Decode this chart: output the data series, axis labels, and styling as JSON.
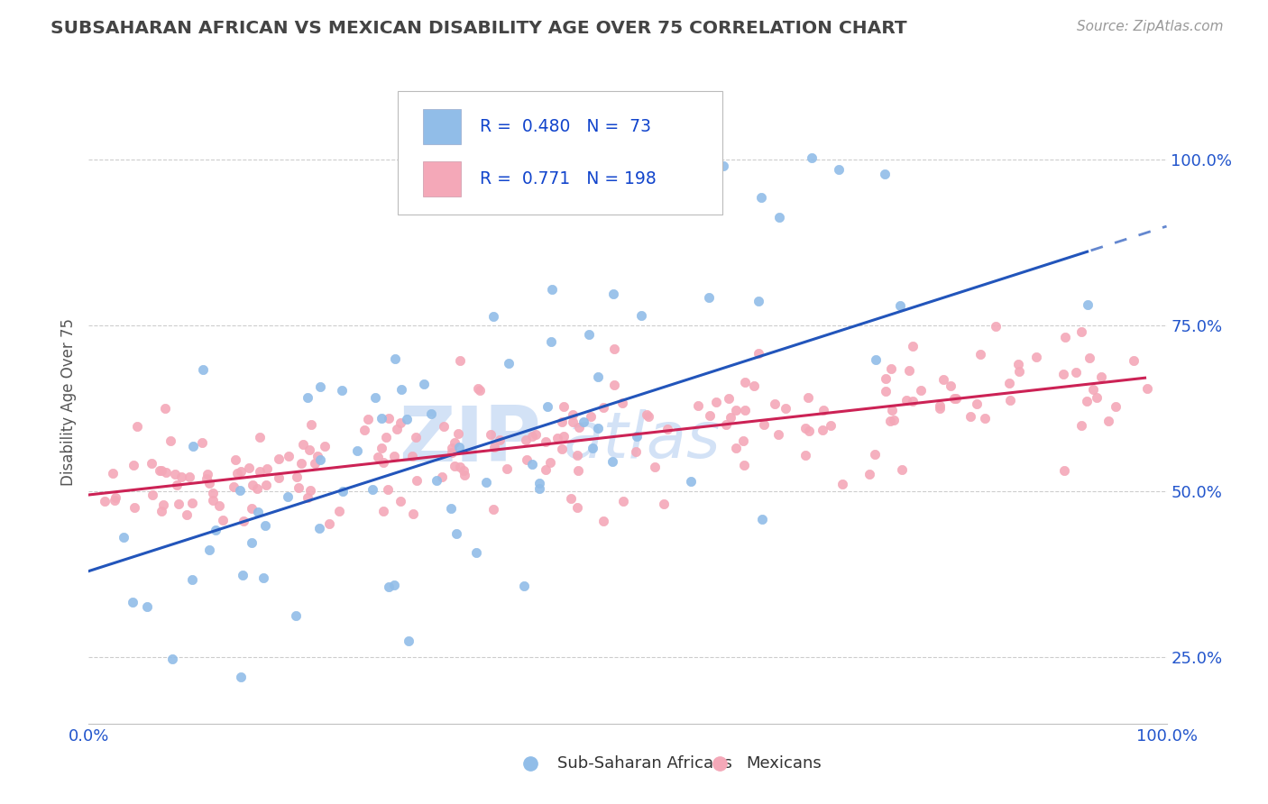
{
  "title": "SUBSAHARAN AFRICAN VS MEXICAN DISABILITY AGE OVER 75 CORRELATION CHART",
  "source": "Source: ZipAtlas.com",
  "ylabel": "Disability Age Over 75",
  "legend_labels": [
    "Sub-Saharan Africans",
    "Mexicans"
  ],
  "watermark_line1": "ZIP",
  "watermark_line2": "atlas",
  "blue_R": "0.480",
  "blue_N": "73",
  "pink_R": "0.771",
  "pink_N": "198",
  "blue_color": "#91bde8",
  "pink_color": "#f4a8b8",
  "blue_line_color": "#2255bb",
  "pink_line_color": "#cc2255",
  "background_color": "#ffffff",
  "grid_color": "#c8c8c8",
  "title_color": "#444444",
  "axis_label_color": "#2255cc",
  "legend_rn_color": "#1144cc",
  "watermark_color": "#ccddf5",
  "blue_slope": 0.52,
  "blue_intercept": 0.38,
  "blue_noise": 0.13,
  "pink_slope": 0.18,
  "pink_intercept": 0.495,
  "pink_noise": 0.045,
  "xlim": [
    0.0,
    1.0
  ],
  "ylim": [
    0.15,
    1.12
  ],
  "ytick_vals": [
    0.25,
    0.5,
    0.75,
    1.0
  ],
  "ytick_labels": [
    "25.0%",
    "50.0%",
    "75.0%",
    "100.0%"
  ],
  "N_blue": 73,
  "N_pink": 198,
  "blue_seed": 42,
  "pink_seed": 99
}
